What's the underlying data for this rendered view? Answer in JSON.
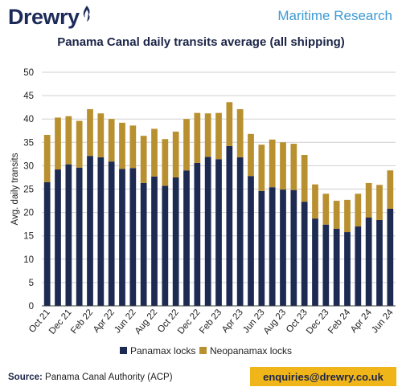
{
  "header": {
    "brand": "Drewry",
    "tagline": "Maritime Research",
    "title": "Panama Canal daily transits average (all shipping)"
  },
  "footer": {
    "source_label": "Source:",
    "source_text": "Panama Canal Authority (ACP)",
    "email": "enquiries@drewry.co.uk"
  },
  "colors": {
    "panamax": "#1d2b53",
    "neopanamax": "#b9902f",
    "grid": "#cfcfcf",
    "accent": "#f0b518"
  },
  "chart_data": {
    "type": "bar",
    "stacked": true,
    "title": "Panama Canal daily transits average (all shipping)",
    "ylabel": "Avg. daily transits",
    "xlabel": "",
    "ylim": [
      0,
      50
    ],
    "yticks": [
      0,
      5,
      10,
      15,
      20,
      25,
      30,
      35,
      40,
      45,
      50
    ],
    "grid": true,
    "legend_position": "bottom",
    "categories": [
      "Oct 21",
      "Nov 21",
      "Dec 21",
      "Jan 22",
      "Feb 22",
      "Mar 22",
      "Apr 22",
      "May 22",
      "Jun 22",
      "Jul 22",
      "Aug 22",
      "Sep 22",
      "Oct 22",
      "Nov 22",
      "Dec 22",
      "Jan 23",
      "Feb 23",
      "Mar 23",
      "Apr 23",
      "May 23",
      "Jun 23",
      "Jul 23",
      "Aug 23",
      "Sep 23",
      "Oct 23",
      "Nov 23",
      "Dec 23",
      "Jan 24",
      "Feb 24",
      "Mar 24",
      "Apr 24",
      "May 24",
      "Jun 24"
    ],
    "tick_labels": [
      "Oct 21",
      "",
      "Dec 21",
      "",
      "Feb 22",
      "",
      "Apr 22",
      "",
      "Jun 22",
      "",
      "Aug 22",
      "",
      "Oct 22",
      "",
      "Dec 22",
      "",
      "Feb 23",
      "",
      "Apr 23",
      "",
      "Jun 23",
      "",
      "Aug 23",
      "",
      "Oct 23",
      "",
      "Dec 23",
      "",
      "Feb 24",
      "",
      "Apr 24",
      "",
      "Jun 24"
    ],
    "series": [
      {
        "name": "Panamax locks",
        "values": [
          26.5,
          29.2,
          30.3,
          29.6,
          32.1,
          31.8,
          30.9,
          29.3,
          29.5,
          26.3,
          27.7,
          25.7,
          27.5,
          29.0,
          30.6,
          31.9,
          31.4,
          34.2,
          31.8,
          27.8,
          24.6,
          25.4,
          24.9,
          24.8,
          22.3,
          18.7,
          17.4,
          16.5,
          15.8,
          17.0,
          18.9,
          18.4,
          20.8
        ]
      },
      {
        "name": "Neopanamax locks",
        "values": [
          10.1,
          11.1,
          10.3,
          10.0,
          10.0,
          9.4,
          9.1,
          9.9,
          9.1,
          10.1,
          10.2,
          10.0,
          9.8,
          11.0,
          10.7,
          9.3,
          9.9,
          9.4,
          10.3,
          9.0,
          9.9,
          10.2,
          10.1,
          9.9,
          10.0,
          7.3,
          6.6,
          6.0,
          6.9,
          7.0,
          7.4,
          7.5,
          8.2
        ]
      }
    ]
  }
}
